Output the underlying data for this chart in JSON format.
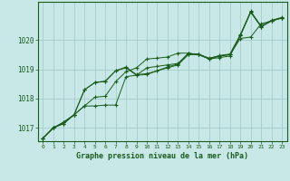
{
  "bg_color": "#c8e8e8",
  "plot_bg_color": "#c8e8e8",
  "grid_color": "#a0c8c8",
  "line_color": "#1a5c1a",
  "marker_color": "#1a5c1a",
  "xlabel": "Graphe pression niveau de la mer (hPa)",
  "xlabel_color": "#1a5c1a",
  "xlim": [
    -0.5,
    23.5
  ],
  "ylim": [
    1016.55,
    1021.3
  ],
  "yticks": [
    1017,
    1018,
    1019,
    1020
  ],
  "xticks": [
    0,
    1,
    2,
    3,
    4,
    5,
    6,
    7,
    8,
    9,
    10,
    11,
    12,
    13,
    14,
    15,
    16,
    17,
    18,
    19,
    20,
    21,
    22,
    23
  ],
  "series": [
    [
      1016.65,
      1017.0,
      1017.2,
      1017.45,
      1017.75,
      1017.75,
      1017.78,
      1017.78,
      1018.75,
      1018.8,
      1019.05,
      1019.1,
      1019.15,
      1019.2,
      1019.55,
      1019.5,
      1019.35,
      1019.4,
      1019.45,
      1020.15,
      1020.95,
      1020.45,
      1020.65,
      1020.75
    ],
    [
      1016.65,
      1017.0,
      1017.2,
      1017.45,
      1018.3,
      1018.55,
      1018.58,
      1018.95,
      1019.05,
      1018.8,
      1018.82,
      1018.95,
      1019.05,
      1019.15,
      1019.5,
      1019.5,
      1019.35,
      1019.45,
      1019.5,
      1020.15,
      1020.95,
      1020.45,
      1020.65,
      1020.75
    ],
    [
      1016.65,
      1017.0,
      1017.15,
      1017.45,
      1017.75,
      1018.05,
      1018.08,
      1018.58,
      1018.92,
      1019.05,
      1019.35,
      1019.38,
      1019.42,
      1019.55,
      1019.55,
      1019.5,
      1019.38,
      1019.45,
      1019.5,
      1020.05,
      1020.1,
      1020.55,
      1020.65,
      1020.75
    ],
    [
      1016.65,
      1017.02,
      1017.15,
      1017.45,
      1018.3,
      1018.55,
      1018.6,
      1018.95,
      1019.08,
      1018.82,
      1018.85,
      1018.95,
      1019.08,
      1019.18,
      1019.52,
      1019.52,
      1019.37,
      1019.47,
      1019.52,
      1020.18,
      1020.98,
      1020.47,
      1020.67,
      1020.77
    ]
  ]
}
